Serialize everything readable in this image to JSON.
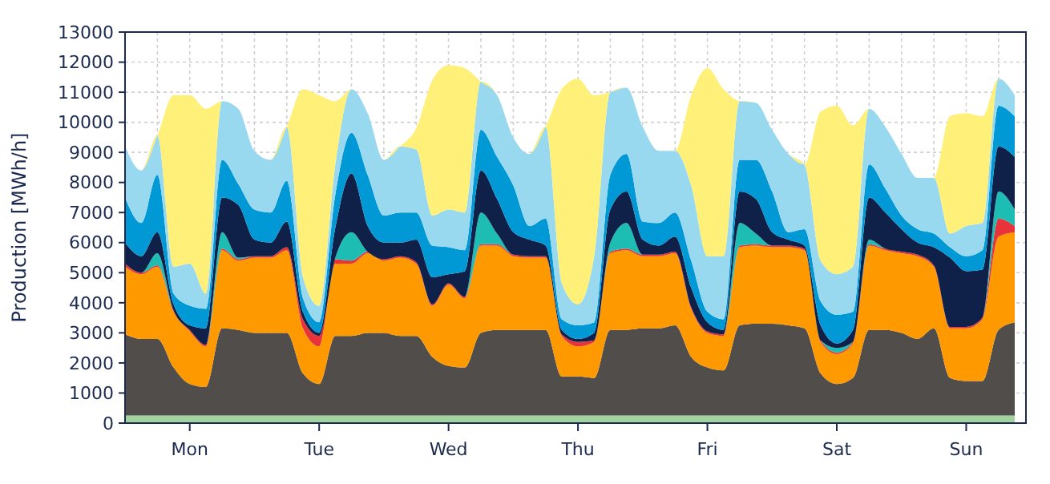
{
  "chart_data": {
    "type": "area",
    "stacked": true,
    "ylabel": "Production [MWh/h]",
    "categories": [
      null,
      null,
      null,
      null,
      "Mon",
      null,
      null,
      null,
      null,
      null,
      null,
      null,
      "Tue",
      null,
      null,
      null,
      null,
      null,
      null,
      null,
      "Wed",
      null,
      null,
      null,
      null,
      null,
      null,
      null,
      "Thu",
      null,
      null,
      null,
      null,
      null,
      null,
      null,
      "Fri",
      null,
      null,
      null,
      null,
      null,
      null,
      null,
      "Sat",
      null,
      null,
      null,
      null,
      null,
      null,
      null,
      "Sun",
      null,
      null,
      null
    ],
    "ylim": [
      0,
      13000
    ],
    "yticks": [
      0,
      1000,
      2000,
      3000,
      4000,
      5000,
      6000,
      7000,
      8000,
      9000,
      10000,
      11000,
      12000,
      13000
    ],
    "grid": true,
    "series": [
      {
        "color": "#a3d39c",
        "values": [
          250,
          250,
          250,
          250,
          250,
          250,
          250,
          250,
          250,
          250,
          250,
          250,
          250,
          250,
          250,
          250,
          250,
          250,
          250,
          250,
          250,
          250,
          250,
          250,
          250,
          250,
          250,
          250,
          250,
          250,
          250,
          250,
          250,
          250,
          250,
          250,
          250,
          250,
          250,
          250,
          250,
          250,
          250,
          250,
          250,
          250,
          250,
          250,
          250,
          250,
          250,
          250,
          250,
          250,
          250,
          250
        ]
      },
      {
        "color": "#504d4a",
        "values": [
          2700,
          2550,
          2550,
          1600,
          1050,
          950,
          2900,
          2850,
          2750,
          2750,
          2750,
          1400,
          1050,
          2650,
          2650,
          2750,
          2750,
          2650,
          2650,
          1950,
          1650,
          1600,
          2750,
          2850,
          2850,
          2850,
          2850,
          1300,
          1300,
          1250,
          2850,
          2850,
          2900,
          2900,
          3000,
          1950,
          1600,
          1500,
          3000,
          3050,
          3050,
          3000,
          2900,
          1400,
          1050,
          1250,
          2850,
          2850,
          2750,
          2550,
          2900,
          1250,
          1150,
          1150,
          2850,
          3100
        ]
      },
      {
        "color": "#ff9900",
        "values": [
          2250,
          2150,
          2400,
          1850,
          1750,
          1350,
          2600,
          2300,
          2500,
          2500,
          2750,
          1500,
          1250,
          2400,
          2400,
          2650,
          2400,
          2600,
          2400,
          1700,
          2700,
          2300,
          2900,
          2800,
          2450,
          2400,
          2400,
          1350,
          1000,
          1200,
          2550,
          2650,
          2400,
          2400,
          2400,
          1600,
          1150,
          1150,
          2600,
          2600,
          2550,
          2600,
          2600,
          1050,
          1000,
          1150,
          2800,
          2650,
          2650,
          2750,
          2050,
          1650,
          1750,
          2050,
          3100,
          3000
        ]
      },
      {
        "color": "#e8333a",
        "values": [
          100,
          50,
          50,
          50,
          50,
          50,
          50,
          50,
          50,
          50,
          100,
          300,
          350,
          150,
          100,
          50,
          50,
          50,
          50,
          50,
          50,
          50,
          50,
          50,
          50,
          50,
          50,
          50,
          150,
          50,
          50,
          50,
          50,
          50,
          50,
          50,
          50,
          50,
          50,
          50,
          50,
          50,
          50,
          50,
          50,
          50,
          50,
          50,
          50,
          50,
          50,
          50,
          50,
          50,
          600,
          200
        ]
      },
      {
        "color": "#1ebdb3",
        "values": [
          0,
          0,
          400,
          0,
          0,
          0,
          550,
          50,
          0,
          0,
          0,
          0,
          0,
          50,
          950,
          0,
          0,
          0,
          0,
          0,
          0,
          0,
          1050,
          350,
          0,
          0,
          0,
          0,
          0,
          0,
          300,
          850,
          0,
          0,
          0,
          0,
          0,
          0,
          750,
          350,
          0,
          0,
          0,
          0,
          150,
          0,
          150,
          0,
          0,
          0,
          0,
          0,
          0,
          0,
          900,
          550
        ]
      },
      {
        "color": "#0f2148",
        "values": [
          700,
          550,
          700,
          200,
          150,
          550,
          1150,
          1750,
          550,
          450,
          850,
          250,
          100,
          1000,
          1950,
          850,
          550,
          450,
          750,
          900,
          300,
          850,
          1400,
          1150,
          750,
          550,
          350,
          150,
          100,
          250,
          1100,
          1050,
          500,
          300,
          500,
          650,
          300,
          150,
          1050,
          1150,
          450,
          200,
          100,
          500,
          150,
          400,
          1400,
          1200,
          750,
          400,
          600,
          2300,
          1850,
          1600,
          1500,
          1750
        ]
      },
      {
        "color": "#0099d6",
        "values": [
          1500,
          1100,
          1900,
          350,
          650,
          650,
          1250,
          700,
          1000,
          1000,
          1350,
          450,
          350,
          1100,
          1350,
          1700,
          900,
          1000,
          900,
          1050,
          900,
          700,
          1350,
          1400,
          1550,
          450,
          900,
          350,
          450,
          350,
          1150,
          1250,
          600,
          750,
          800,
          900,
          350,
          350,
          1050,
          1300,
          1350,
          250,
          550,
          800,
          950,
          600,
          1100,
          800,
          450,
          450,
          450,
          350,
          500,
          650,
          1350,
          1350
        ]
      },
      {
        "color": "#99d9f0",
        "values": [
          1700,
          1750,
          1300,
          900,
          1400,
          500,
          1950,
          2500,
          1950,
          1750,
          1800,
          700,
          550,
          1000,
          1450,
          2050,
          1850,
          2200,
          2100,
          1000,
          1250,
          1250,
          1600,
          2050,
          1600,
          2400,
          3050,
          1200,
          700,
          2200,
          2750,
          2200,
          3150,
          2400,
          2050,
          2500,
          1850,
          2100,
          1950,
          1900,
          2050,
          2600,
          2150,
          1350,
          1350,
          1500,
          1850,
          2050,
          2050,
          1700,
          1850,
          450,
          1000,
          900,
          900,
          700
        ]
      },
      {
        "color": "#fff07a",
        "values": [
          0,
          0,
          0,
          5700,
          5600,
          6150,
          0,
          0,
          0,
          0,
          0,
          6250,
          7000,
          2100,
          0,
          0,
          0,
          0,
          700,
          4500,
          4800,
          4800,
          0,
          0,
          0,
          0,
          0,
          6450,
          7500,
          5350,
          0,
          0,
          0,
          0,
          0,
          3000,
          6250,
          5550,
          0,
          0,
          0,
          0,
          0,
          4950,
          5600,
          4700,
          0,
          0,
          0,
          0,
          0,
          3900,
          3750,
          3550,
          0,
          0
        ]
      }
    ]
  }
}
